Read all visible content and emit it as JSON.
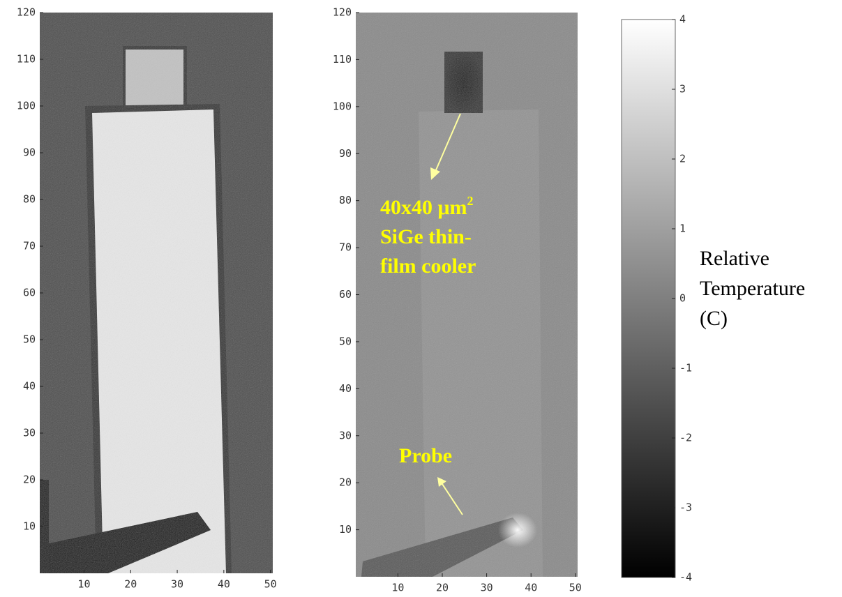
{
  "chart_data": [
    {
      "type": "image",
      "xlim": [
        0.5,
        50.5
      ],
      "ylim": [
        0,
        120
      ],
      "xticks": [
        10,
        20,
        30,
        40,
        50
      ],
      "yticks": [
        10,
        20,
        30,
        40,
        50,
        60,
        70,
        80,
        90,
        100,
        110,
        120
      ]
    },
    {
      "type": "image",
      "xlim": [
        0.5,
        50.5
      ],
      "ylim": [
        0,
        120
      ],
      "xticks": [
        10,
        20,
        30,
        40,
        50
      ],
      "yticks": [
        10,
        20,
        30,
        40,
        50,
        60,
        70,
        80,
        90,
        100,
        110,
        120
      ],
      "annotations": [
        {
          "lines": [
            "40x40 μm",
            "SiGe thin-",
            "film cooler"
          ],
          "superscript": "2"
        },
        {
          "lines": [
            "Probe"
          ]
        }
      ]
    },
    {
      "type": "colorbar",
      "ylim": [
        -4,
        4
      ],
      "yticks": [
        -4,
        -3,
        -2,
        -1,
        0,
        1,
        2,
        3,
        4
      ],
      "label": [
        "Relative",
        "Temperature",
        "(C)"
      ]
    }
  ]
}
